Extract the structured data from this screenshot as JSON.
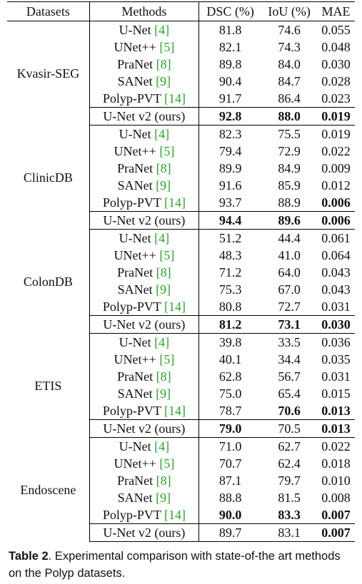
{
  "headers": [
    "Datasets",
    "Methods",
    "DSC (%)",
    "IoU (%)",
    "MAE"
  ],
  "groups": [
    {
      "dataset": "Kvasir-SEG",
      "rows": [
        {
          "method": "U-Net",
          "ref": "4",
          "dsc": "81.8",
          "iou": "74.6",
          "mae": "0.055"
        },
        {
          "method": "UNet++",
          "ref": "5",
          "dsc": "82.1",
          "iou": "74.3",
          "mae": "0.048"
        },
        {
          "method": "PraNet",
          "ref": "8",
          "dsc": "89.8",
          "iou": "84.0",
          "mae": "0.030"
        },
        {
          "method": "SANet",
          "ref": "9",
          "dsc": "90.4",
          "iou": "84.7",
          "mae": "0.028"
        },
        {
          "method": "Polyp-PVT",
          "ref": "14",
          "dsc": "91.7",
          "iou": "86.4",
          "mae": "0.023"
        },
        {
          "method": "U-Net v2 (ours)",
          "ref": "",
          "dsc": "92.8",
          "iou": "88.0",
          "mae": "0.019",
          "bold": [
            "dsc",
            "iou",
            "mae"
          ]
        }
      ]
    },
    {
      "dataset": "ClinicDB",
      "rows": [
        {
          "method": "U-Net",
          "ref": "4",
          "dsc": "82.3",
          "iou": "75.5",
          "mae": "0.019"
        },
        {
          "method": "UNet++",
          "ref": "5",
          "dsc": "79.4",
          "iou": "72.9",
          "mae": "0.022"
        },
        {
          "method": "PraNet",
          "ref": "8",
          "dsc": "89.9",
          "iou": "84.9",
          "mae": "0.009"
        },
        {
          "method": "SANet",
          "ref": "9",
          "dsc": "91.6",
          "iou": "85.9",
          "mae": "0.012"
        },
        {
          "method": "Polyp-PVT",
          "ref": "14",
          "dsc": "93.7",
          "iou": "88.9",
          "mae": "0.006",
          "bold": [
            "mae"
          ]
        },
        {
          "method": "U-Net v2 (ours)",
          "ref": "",
          "dsc": "94.4",
          "iou": "89.6",
          "mae": "0.006",
          "bold": [
            "dsc",
            "iou",
            "mae"
          ]
        }
      ]
    },
    {
      "dataset": "ColonDB",
      "rows": [
        {
          "method": "U-Net",
          "ref": "4",
          "dsc": "51.2",
          "iou": "44.4",
          "mae": "0.061"
        },
        {
          "method": "UNet++",
          "ref": "5",
          "dsc": "48.3",
          "iou": "41.0",
          "mae": "0.064"
        },
        {
          "method": "PraNet",
          "ref": "8",
          "dsc": "71.2",
          "iou": "64.0",
          "mae": "0.043"
        },
        {
          "method": "SANet",
          "ref": "9",
          "dsc": "75.3",
          "iou": "67.0",
          "mae": "0.043"
        },
        {
          "method": "Polyp-PVT",
          "ref": "14",
          "dsc": "80.8",
          "iou": "72.7",
          "mae": "0.031"
        },
        {
          "method": "U-Net v2 (ours)",
          "ref": "",
          "dsc": "81.2",
          "iou": "73.1",
          "mae": "0.030",
          "bold": [
            "dsc",
            "iou",
            "mae"
          ]
        }
      ]
    },
    {
      "dataset": "ETIS",
      "rows": [
        {
          "method": "U-Net",
          "ref": "4",
          "dsc": "39.8",
          "iou": "33.5",
          "mae": "0.036"
        },
        {
          "method": "UNet++",
          "ref": "5",
          "dsc": "40.1",
          "iou": "34.4",
          "mae": "0.035"
        },
        {
          "method": "PraNet",
          "ref": "8",
          "dsc": "62.8",
          "iou": "56.7",
          "mae": "0.031"
        },
        {
          "method": "SANet",
          "ref": "9",
          "dsc": "75.0",
          "iou": "65.4",
          "mae": "0.015"
        },
        {
          "method": "Polyp-PVT",
          "ref": "14",
          "dsc": "78.7",
          "iou": "70.6",
          "mae": "0.013",
          "bold": [
            "iou",
            "mae"
          ]
        },
        {
          "method": "U-Net v2 (ours)",
          "ref": "",
          "dsc": "79.0",
          "iou": "70.5",
          "mae": "0.013",
          "bold": [
            "dsc",
            "mae"
          ]
        }
      ]
    },
    {
      "dataset": "Endoscene",
      "rows": [
        {
          "method": "U-Net",
          "ref": "4",
          "dsc": "71.0",
          "iou": "62.7",
          "mae": "0.022"
        },
        {
          "method": "UNet++",
          "ref": "5",
          "dsc": "70.7",
          "iou": "62.4",
          "mae": "0.018"
        },
        {
          "method": "PraNet",
          "ref": "8",
          "dsc": "87.1",
          "iou": "79.7",
          "mae": "0.010"
        },
        {
          "method": "SANet",
          "ref": "9",
          "dsc": "88.8",
          "iou": "81.5",
          "mae": "0.008"
        },
        {
          "method": "Polyp-PVT",
          "ref": "14",
          "dsc": "90.0",
          "iou": "83.3",
          "mae": "0.007",
          "bold": [
            "dsc",
            "iou",
            "mae"
          ]
        },
        {
          "method": "U-Net v2 (ours)",
          "ref": "",
          "dsc": "89.7",
          "iou": "83.1",
          "mae": "0.007",
          "bold": [
            "mae"
          ]
        }
      ]
    }
  ],
  "caption": {
    "label": "Table 2",
    "text": ". Experimental comparison with state-of-the art methods on the Polyp datasets."
  }
}
